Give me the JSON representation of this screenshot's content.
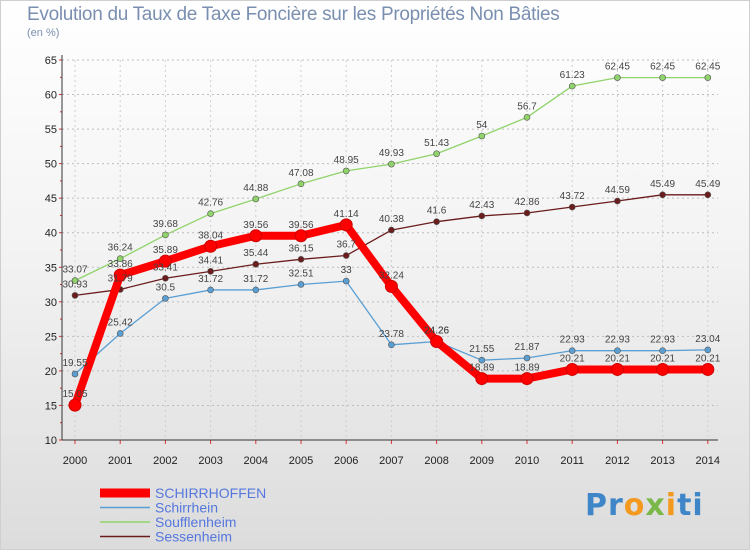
{
  "chart_data": {
    "type": "line",
    "title": "Evolution du Taux de Taxe Foncière sur les Propriétés Non Bâties",
    "unit": "(en %)",
    "xlabel": "",
    "ylabel": "",
    "x": [
      "2000",
      "2001",
      "2002",
      "2003",
      "2004",
      "2005",
      "2006",
      "2007",
      "2008",
      "2009",
      "2010",
      "2011",
      "2012",
      "2013",
      "2014"
    ],
    "ylim": [
      10,
      65
    ],
    "yticks": [
      10,
      15,
      20,
      25,
      30,
      35,
      40,
      45,
      50,
      55,
      60,
      65
    ],
    "series": [
      {
        "name": "SCHIRRHOFFEN",
        "color": "#ff0000",
        "values": [
          15.05,
          33.86,
          35.89,
          38.04,
          39.56,
          39.56,
          41.14,
          32.24,
          24.26,
          18.89,
          18.89,
          20.21,
          20.21,
          20.21,
          20.21
        ]
      },
      {
        "name": "Schirrhein",
        "color": "#5a9fd4",
        "values": [
          19.55,
          25.42,
          30.5,
          31.72,
          31.72,
          32.51,
          33,
          23.78,
          24.26,
          21.55,
          21.87,
          22.93,
          22.93,
          22.93,
          23.04
        ]
      },
      {
        "name": "Soufflenheim",
        "color": "#8fd36a",
        "values": [
          33.07,
          36.24,
          39.68,
          42.76,
          44.88,
          47.08,
          48.95,
          49.93,
          51.43,
          54,
          56.7,
          61.23,
          62.45,
          62.45,
          62.45
        ]
      },
      {
        "name": "Sessenheim",
        "color": "#6b1c1c",
        "values": [
          30.93,
          31.79,
          33.41,
          34.41,
          35.44,
          36.15,
          36.7,
          40.38,
          41.6,
          42.43,
          42.86,
          43.72,
          44.59,
          45.49,
          45.49
        ]
      }
    ],
    "grid": "horizontal dashed",
    "legend": "bottom-left"
  },
  "logo": {
    "p1": "Pr",
    "p2": "o",
    "p3": "x",
    "p4": "i",
    "p5": "ti"
  }
}
